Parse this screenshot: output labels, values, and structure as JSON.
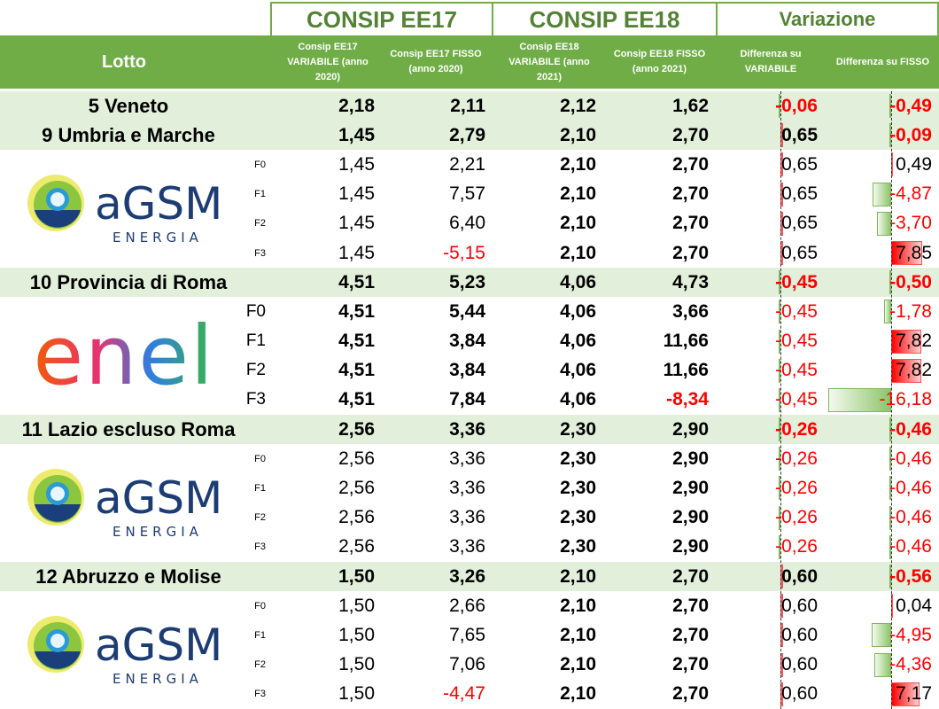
{
  "header": {
    "ee17": "CONSIP EE17",
    "ee18": "CONSIP EE18",
    "variazione": "Variazione"
  },
  "subheader": {
    "lotto": "Lotto",
    "ee17_var": "Consip EE17 VARIABILE (anno 2020)",
    "ee17_fix": "Consip EE17 FISSO (anno 2020)",
    "ee18_var": "Consip EE18 VARIABILE (anno 2021)",
    "ee18_fix": "Consip EE18 FISSO (anno 2021)",
    "diff_var": "Differenza su VARIABILE",
    "diff_fix": "Differenza su FISSO"
  },
  "colors": {
    "green": "#70ad47",
    "dark_green": "#548235",
    "light_green": "#e2efda",
    "red": "#ff0000"
  },
  "sections": [
    {
      "lotto": "5 Veneto",
      "values": [
        "2,18",
        "2,11",
        "2,12",
        "1,62",
        "-0,06",
        "-0,49"
      ]
    },
    {
      "lotto": "9 Umbria e Marche",
      "values": [
        "1,45",
        "2,79",
        "2,10",
        "2,70",
        "0,65",
        "-0,09"
      ],
      "group": {
        "logo": "agsm",
        "logo_text": "aGSM",
        "logo_sub": "ENERGIA",
        "rows": [
          {
            "f": "F0",
            "values": [
              "1,45",
              "2,21",
              "2,10",
              "2,70",
              "0,65",
              "0,49"
            ]
          },
          {
            "f": "F1",
            "values": [
              "1,45",
              "7,57",
              "2,10",
              "2,70",
              "0,65",
              "-4,87"
            ]
          },
          {
            "f": "F2",
            "values": [
              "1,45",
              "6,40",
              "2,10",
              "2,70",
              "0,65",
              "-3,70"
            ]
          },
          {
            "f": "F3",
            "values": [
              "1,45",
              "-5,15",
              "2,10",
              "2,70",
              "0,65",
              "7,85"
            ]
          }
        ]
      }
    },
    {
      "lotto": "10 Provincia di Roma",
      "values": [
        "4,51",
        "5,23",
        "4,06",
        "4,73",
        "-0,45",
        "-0,50"
      ],
      "group": {
        "logo": "enel",
        "logo_text": "enel",
        "rows": [
          {
            "f": "F0",
            "values": [
              "4,51",
              "5,44",
              "4,06",
              "3,66",
              "-0,45",
              "-1,78"
            ]
          },
          {
            "f": "F1",
            "values": [
              "4,51",
              "3,84",
              "4,06",
              "11,66",
              "-0,45",
              "7,82"
            ]
          },
          {
            "f": "F2",
            "values": [
              "4,51",
              "3,84",
              "4,06",
              "11,66",
              "-0,45",
              "7,82"
            ]
          },
          {
            "f": "F3",
            "values": [
              "4,51",
              "7,84",
              "4,06",
              "-8,34",
              "-0,45",
              "-16,18"
            ]
          }
        ]
      }
    },
    {
      "lotto": "11 Lazio escluso Roma",
      "values": [
        "2,56",
        "3,36",
        "2,30",
        "2,90",
        "-0,26",
        "-0,46"
      ],
      "group": {
        "logo": "agsm",
        "logo_text": "aGSM",
        "logo_sub": "ENERGIA",
        "rows": [
          {
            "f": "F0",
            "values": [
              "2,56",
              "3,36",
              "2,30",
              "2,90",
              "-0,26",
              "-0,46"
            ]
          },
          {
            "f": "F1",
            "values": [
              "2,56",
              "3,36",
              "2,30",
              "2,90",
              "-0,26",
              "-0,46"
            ]
          },
          {
            "f": "F2",
            "values": [
              "2,56",
              "3,36",
              "2,30",
              "2,90",
              "-0,26",
              "-0,46"
            ]
          },
          {
            "f": "F3",
            "values": [
              "2,56",
              "3,36",
              "2,30",
              "2,90",
              "-0,26",
              "-0,46"
            ]
          }
        ]
      }
    },
    {
      "lotto": "12 Abruzzo e Molise",
      "values": [
        "1,50",
        "3,26",
        "2,10",
        "2,70",
        "0,60",
        "-0,56"
      ],
      "group": {
        "logo": "agsm",
        "logo_text": "aGSM",
        "logo_sub": "ENERGIA",
        "rows": [
          {
            "f": "F0",
            "values": [
              "1,50",
              "2,66",
              "2,10",
              "2,70",
              "0,60",
              "0,04"
            ]
          },
          {
            "f": "F1",
            "values": [
              "1,50",
              "7,65",
              "2,10",
              "2,70",
              "0,60",
              "-4,95"
            ]
          },
          {
            "f": "F2",
            "values": [
              "1,50",
              "7,06",
              "2,10",
              "2,70",
              "0,60",
              "-4,36"
            ]
          },
          {
            "f": "F3",
            "values": [
              "1,50",
              "-4,47",
              "2,10",
              "2,70",
              "0,60",
              "7,17"
            ]
          }
        ]
      }
    }
  ]
}
